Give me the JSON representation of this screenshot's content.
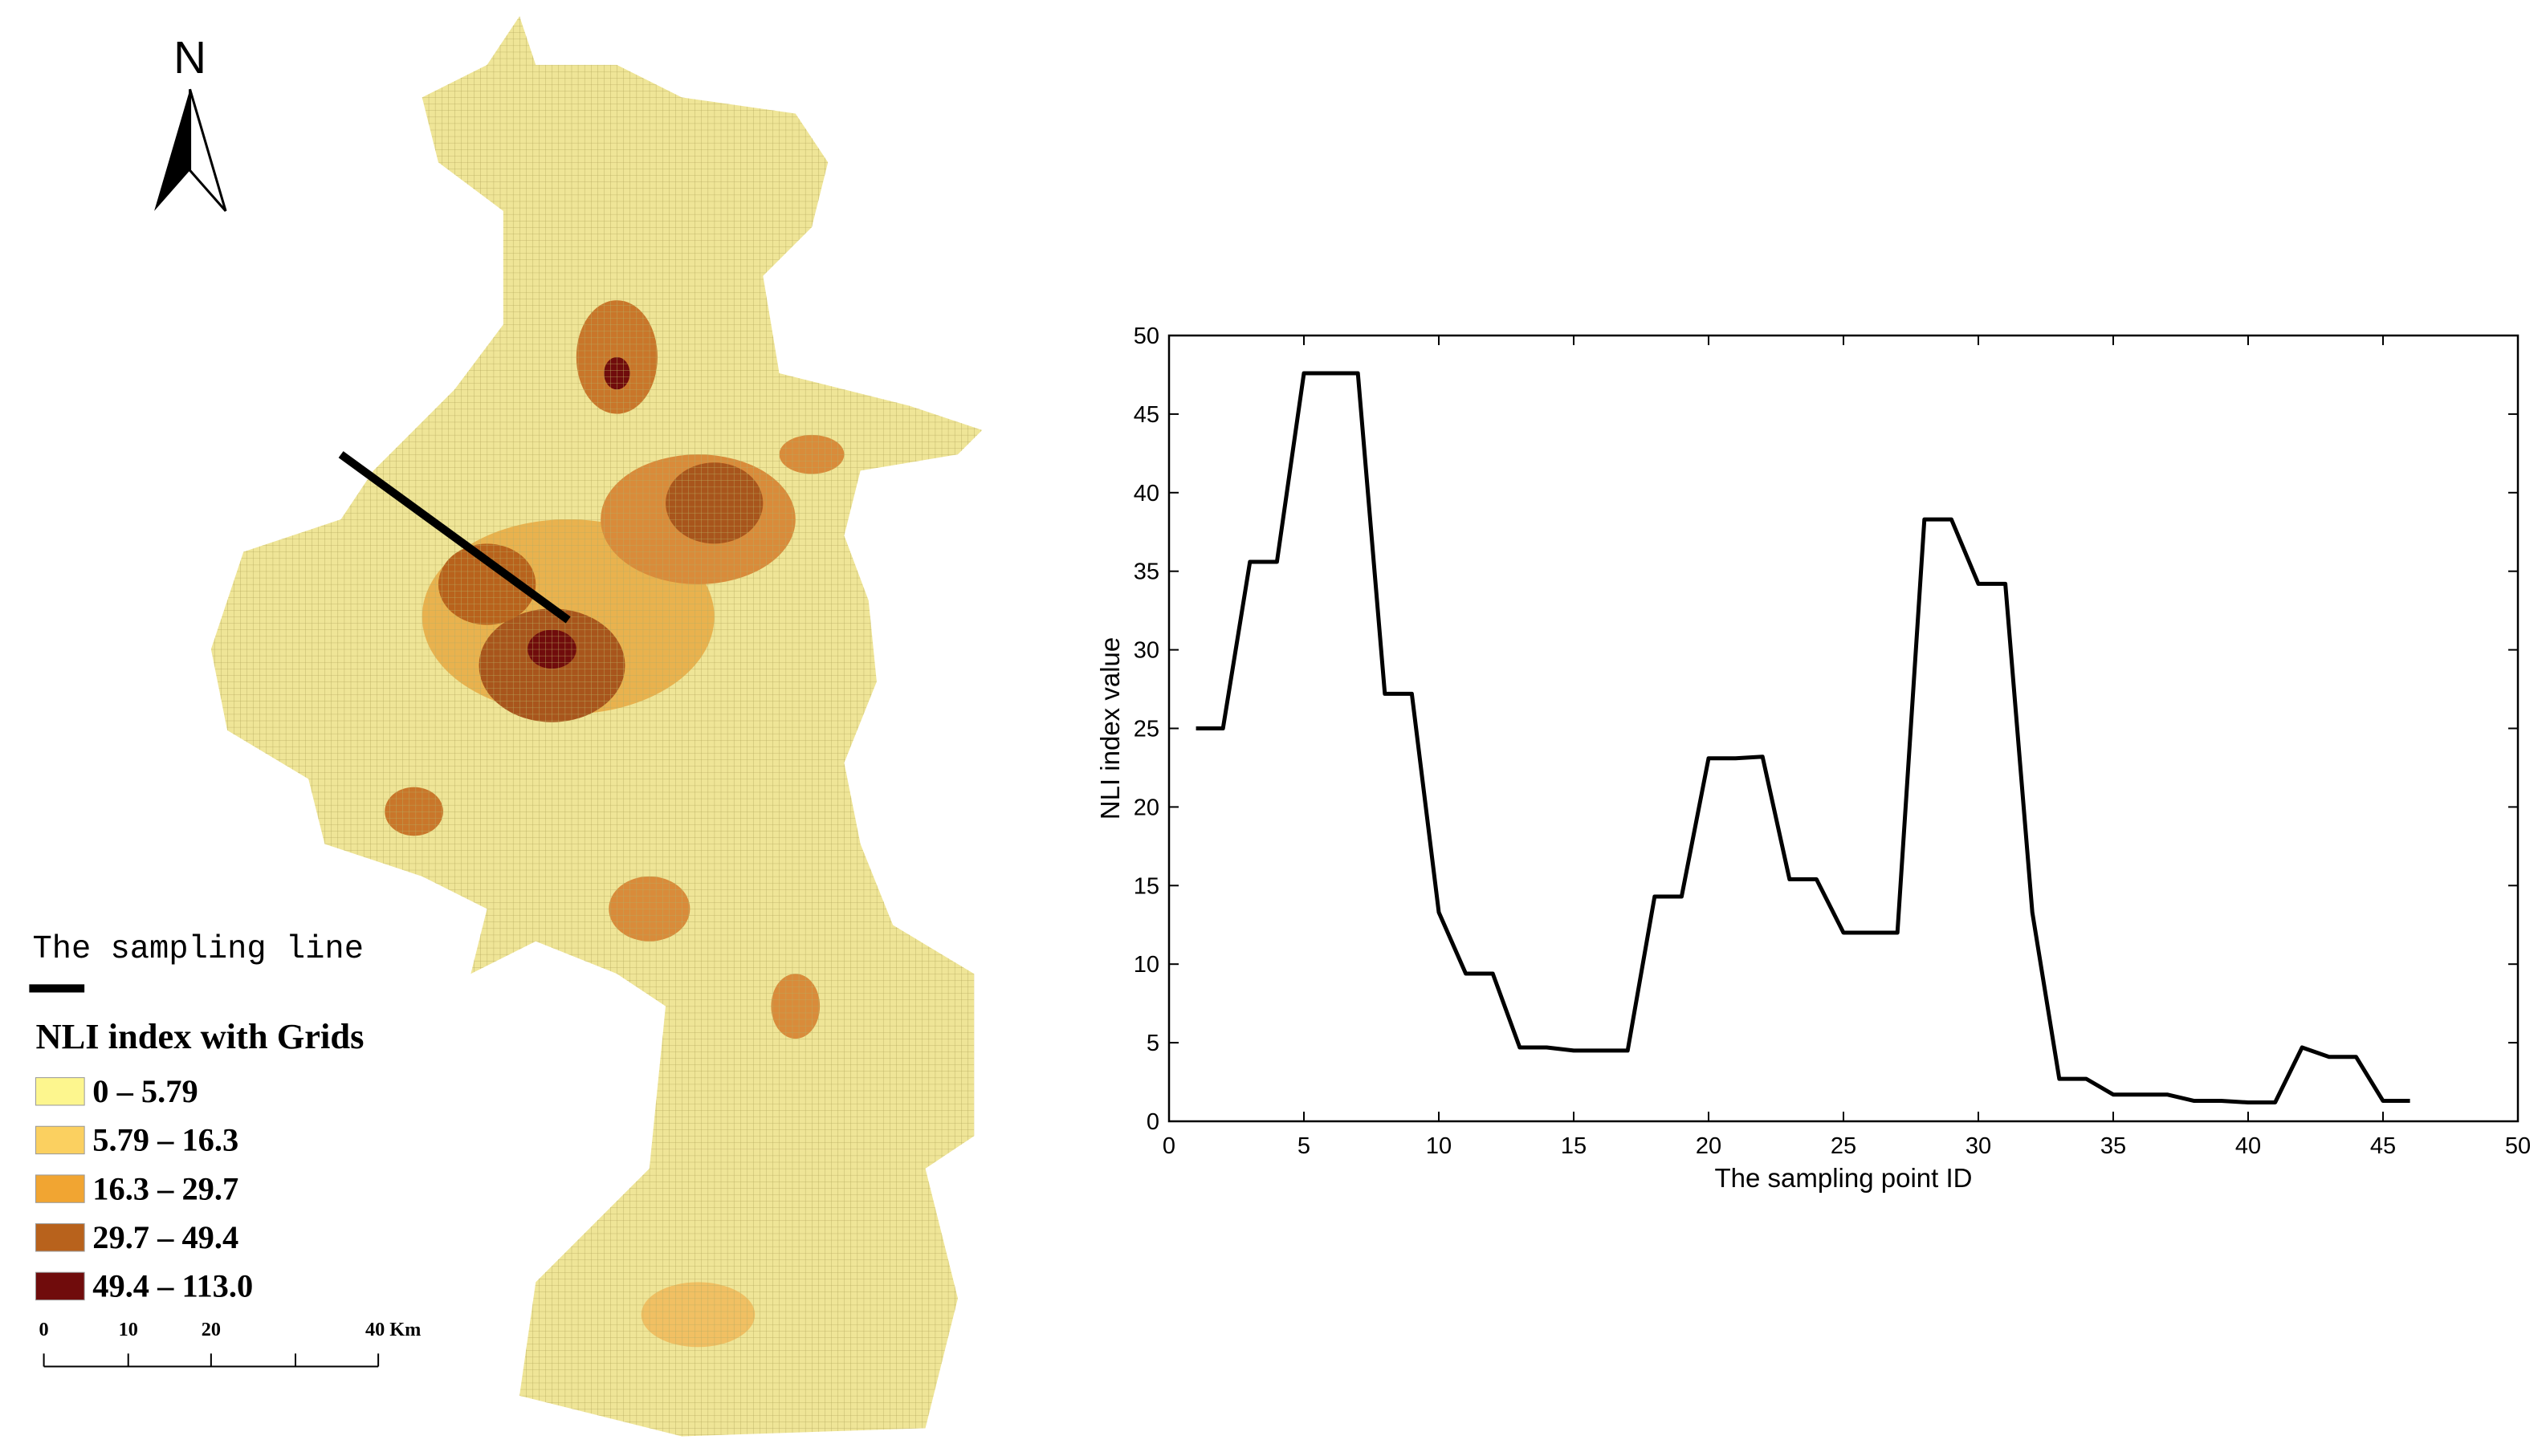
{
  "map": {
    "north_label": "N",
    "sampling_line_label": "The sampling line",
    "legend": {
      "title": "NLI index with Grids",
      "items": [
        {
          "label": "0 – 5.79",
          "color": "#fdf68e"
        },
        {
          "label": "5.79 – 16.3",
          "color": "#fbd060"
        },
        {
          "label": "16.3 – 29.7",
          "color": "#f1a532"
        },
        {
          "label": "29.7 – 49.4",
          "color": "#b8621c"
        },
        {
          "label": "49.4 – 113.0",
          "color": "#700c0c"
        }
      ]
    },
    "scale_bar": {
      "labels": [
        "0",
        "10",
        "20",
        "40 Km"
      ]
    }
  },
  "chart_data": {
    "type": "line",
    "xlabel": "The sampling point ID",
    "ylabel": "NLI index value",
    "x": [
      1,
      2,
      3,
      4,
      5,
      6,
      7,
      8,
      9,
      10,
      11,
      12,
      13,
      14,
      15,
      16,
      17,
      18,
      19,
      20,
      21,
      22,
      23,
      24,
      25,
      26,
      27,
      28,
      29,
      30,
      31,
      32,
      33,
      34,
      35,
      36,
      37,
      38,
      39,
      40,
      41,
      42,
      43,
      44,
      45,
      46
    ],
    "series": [
      {
        "color": "#000000",
        "values": [
          25,
          25,
          35.6,
          35.6,
          47.6,
          47.6,
          47.6,
          27.2,
          27.2,
          13.3,
          9.4,
          9.4,
          4.7,
          4.7,
          4.5,
          4.5,
          4.5,
          14.3,
          14.3,
          23.1,
          23.1,
          23.2,
          15.4,
          15.4,
          12,
          12,
          12,
          38.3,
          38.3,
          34.2,
          34.2,
          13.3,
          2.7,
          2.7,
          1.7,
          1.7,
          1.7,
          1.3,
          1.3,
          1.2,
          1.2,
          4.7,
          4.1,
          4.1,
          1.3,
          1.3
        ]
      }
    ],
    "xlim": [
      0,
      50
    ],
    "ylim": [
      0,
      50
    ],
    "xticks": [
      0,
      5,
      10,
      15,
      20,
      25,
      30,
      35,
      40,
      45,
      50
    ],
    "yticks": [
      0,
      5,
      10,
      15,
      20,
      25,
      30,
      35,
      40,
      45,
      50
    ],
    "grid": false
  }
}
